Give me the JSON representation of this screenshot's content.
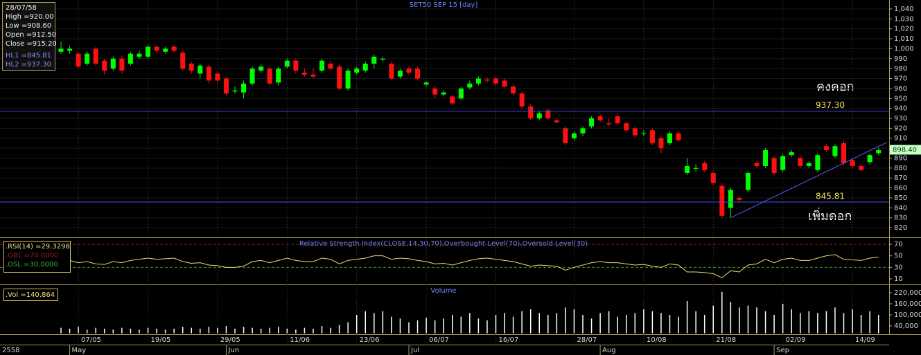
{
  "chart_data": [
    {
      "type": "candlestick",
      "title": "SET50 SEP 15  [day]",
      "open": [
        997,
        998,
        995,
        985,
        1000,
        988,
        980,
        990,
        985,
        992,
        992,
        1002,
        997,
        1002,
        996,
        985,
        975,
        982,
        975,
        970,
        957,
        956,
        965,
        978,
        980,
        966,
        982,
        988,
        976,
        974,
        978,
        985,
        982,
        960,
        976,
        978,
        985,
        989,
        985,
        972,
        980,
        980,
        964,
        960,
        954,
        952,
        950,
        961,
        965,
        969,
        970,
        968,
        962,
        955,
        942,
        930,
        938,
        928,
        920,
        910,
        915,
        922,
        932,
        925,
        932,
        925,
        920,
        915,
        918,
        910,
        905,
        915,
        875,
        880,
        885,
        875,
        862,
        840,
        850,
        858,
        885,
        882,
        890,
        878,
        893,
        890,
        882,
        878,
        902,
        892,
        905,
        888,
        882,
        886,
        895
      ],
      "high": [
        1007,
        1003,
        997,
        997,
        1002,
        990,
        992,
        993,
        997,
        998,
        1004,
        1003,
        1002,
        1004,
        998,
        987,
        985,
        984,
        977,
        972,
        962,
        968,
        982,
        984,
        982,
        982,
        990,
        990,
        980,
        980,
        990,
        988,
        984,
        980,
        982,
        987,
        994,
        992,
        987,
        980,
        982,
        982,
        967,
        962,
        958,
        954,
        962,
        968,
        972,
        971,
        972,
        970,
        964,
        957,
        944,
        937,
        940,
        930,
        922,
        917,
        922,
        932,
        934,
        930,
        935,
        927,
        922,
        918,
        920,
        912,
        917,
        917,
        890,
        884,
        887,
        877,
        865,
        860,
        852,
        877,
        887,
        900,
        892,
        894,
        898,
        892,
        887,
        895,
        904,
        904,
        908,
        890,
        884,
        895,
        900
      ],
      "low": [
        995,
        995,
        980,
        983,
        983,
        974,
        978,
        975,
        983,
        990,
        990,
        996,
        995,
        996,
        978,
        975,
        970,
        965,
        965,
        953,
        955,
        950,
        963,
        976,
        963,
        963,
        980,
        975,
        972,
        970,
        976,
        978,
        958,
        958,
        974,
        976,
        980,
        987,
        968,
        970,
        974,
        968,
        962,
        950,
        952,
        943,
        948,
        959,
        963,
        966,
        963,
        960,
        953,
        940,
        928,
        928,
        928,
        925,
        903,
        908,
        912,
        920,
        926,
        922,
        923,
        916,
        911,
        912,
        903,
        895,
        903,
        906,
        873,
        876,
        876,
        863,
        830,
        830,
        845,
        856,
        880,
        880,
        873,
        876,
        891,
        880,
        880,
        876,
        896,
        890,
        883,
        880,
        876,
        884,
        893
      ],
      "close": [
        1000,
        1000,
        982,
        995,
        985,
        978,
        990,
        978,
        995,
        995,
        1002,
        998,
        1000,
        998,
        980,
        978,
        983,
        968,
        968,
        955,
        958,
        965,
        980,
        982,
        965,
        980,
        988,
        978,
        974,
        972,
        988,
        980,
        960,
        978,
        980,
        985,
        992,
        990,
        970,
        978,
        976,
        970,
        966,
        954,
        956,
        945,
        960,
        965,
        970,
        968,
        965,
        962,
        955,
        942,
        930,
        935,
        930,
        926,
        905,
        915,
        920,
        930,
        928,
        924,
        925,
        918,
        913,
        915,
        905,
        900,
        915,
        908,
        882,
        880,
        878,
        865,
        832,
        858,
        848,
        875,
        882,
        898,
        875,
        892,
        896,
        882,
        885,
        893,
        898,
        902,
        885,
        882,
        878,
        893,
        898
      ],
      "up_color": "#00ff00",
      "down_color": "#ff1010",
      "ylim": [
        810.3,
        1049
      ],
      "yticks": [
        {
          "value": 1040,
          "label": "1,040"
        },
        {
          "value": 1030,
          "label": "1,030"
        },
        {
          "value": 1020,
          "label": "1,020"
        },
        {
          "value": 1010,
          "label": "1,010"
        },
        {
          "value": 1000,
          "label": "1,000"
        },
        990,
        980,
        970,
        960,
        950,
        940,
        930,
        920,
        910,
        900,
        890,
        880,
        870,
        860,
        850,
        840,
        830,
        820
      ],
      "xticks": [
        {
          "value": 2,
          "label": "07/05"
        },
        {
          "value": 10,
          "label": "19/05"
        },
        {
          "value": 18,
          "label": "29/05"
        },
        {
          "value": 26,
          "label": "11/06"
        },
        {
          "value": 34,
          "label": "23/06"
        },
        {
          "value": 42,
          "label": "06/07"
        },
        {
          "value": 50,
          "label": "16/07"
        },
        {
          "value": 59,
          "label": "28/07"
        },
        {
          "value": 67,
          "label": "10/08"
        },
        {
          "value": 75,
          "label": "21/08"
        },
        {
          "value": 83,
          "label": "02/09"
        },
        {
          "value": 91,
          "label": "14/09"
        }
      ],
      "month_ticks": [
        {
          "value": 1,
          "label": "May"
        },
        {
          "value": 19,
          "label": "Jun"
        },
        {
          "value": 40,
          "label": "Jul"
        },
        {
          "value": 62,
          "label": "Aug"
        },
        {
          "value": 82,
          "label": "Sep"
        }
      ],
      "year_label": "2558",
      "hlines": [
        {
          "value": 845.81,
          "label": "845.81"
        },
        {
          "value": 937.3,
          "label": "937.30"
        }
      ],
      "hline_color": "#4a4aff",
      "trendline": {
        "x": [
          77,
          95
        ],
        "y": [
          830,
          906
        ],
        "color": "#5060ff"
      },
      "annotations": [
        "คงคอก",
        "เพิ่มดอก"
      ],
      "last_price": 898.4,
      "last_price_label": "898.40",
      "info": [
        "28/07/58",
        "High =920.00",
        "Low =908.60",
        "Open =912.50",
        "Close =915.20",
        "HL1 =845.81",
        "HL2 =937.30"
      ]
    },
    {
      "type": "line",
      "title": "Relative Strength Index(CLOSE,14,30,70),Overbought Level(70),Oversold Level(30)",
      "values": [
        45,
        42,
        38,
        40,
        36,
        35,
        40,
        38,
        42,
        44,
        46,
        44,
        45,
        46,
        40,
        37,
        38,
        34,
        33,
        30,
        30,
        32,
        40,
        42,
        38,
        42,
        46,
        42,
        40,
        40,
        46,
        44,
        36,
        42,
        44,
        46,
        50,
        50,
        44,
        46,
        45,
        42,
        40,
        36,
        37,
        34,
        38,
        42,
        45,
        46,
        44,
        42,
        40,
        36,
        32,
        34,
        33,
        32,
        25,
        30,
        34,
        38,
        40,
        38,
        38,
        36,
        34,
        35,
        32,
        30,
        36,
        34,
        22,
        22,
        21,
        19,
        12,
        24,
        22,
        34,
        36,
        44,
        38,
        44,
        46,
        42,
        42,
        46,
        50,
        52,
        44,
        43,
        42,
        46,
        48
      ],
      "color": "#e6e070",
      "ylim": [
        1.6,
        79.6
      ],
      "yticks": [
        70,
        50,
        30,
        10
      ],
      "levels": [
        {
          "value": 70,
          "color": "#9a1a1a"
        },
        {
          "value": 30,
          "color": "#2e9a2e"
        }
      ],
      "info": [
        ".RSI(14) =29.3298",
        ".OBL =70.0000",
        ".OSL =30.0000"
      ]
    },
    {
      "type": "bar",
      "title": "Volume",
      "values": [
        30000,
        25000,
        35000,
        20000,
        30000,
        25000,
        20000,
        30000,
        25000,
        20000,
        30000,
        25000,
        20000,
        25000,
        35000,
        30000,
        25000,
        35000,
        30000,
        40000,
        25000,
        35000,
        30000,
        25000,
        30000,
        35000,
        25000,
        20000,
        30000,
        25000,
        40000,
        30000,
        45000,
        60000,
        100000,
        120000,
        110000,
        120000,
        90000,
        80000,
        60000,
        70000,
        85000,
        70000,
        80000,
        100000,
        90000,
        110000,
        80000,
        70000,
        100000,
        110000,
        90000,
        120000,
        130000,
        110000,
        100000,
        110000,
        140000,
        130000,
        100000,
        80000,
        110000,
        120000,
        90000,
        100000,
        110000,
        130000,
        120000,
        110000,
        100000,
        90000,
        175000,
        120000,
        100000,
        150000,
        225000,
        170000,
        140000,
        150000,
        140000,
        120000,
        100000,
        160000,
        130000,
        110000,
        120000,
        110000,
        120000,
        140000,
        110000,
        130000,
        100000,
        120000,
        100000
      ],
      "color": "#ffffff",
      "ylim": [
        -5000,
        257500
      ],
      "yticks": [
        {
          "value": 220000,
          "label": "220,000"
        },
        {
          "value": 160000,
          "label": "160,000"
        },
        {
          "value": 100000,
          "label": "100,000"
        },
        {
          "value": 40000,
          "label": "40,000"
        }
      ],
      "info": ".Vol =140,864"
    }
  ]
}
